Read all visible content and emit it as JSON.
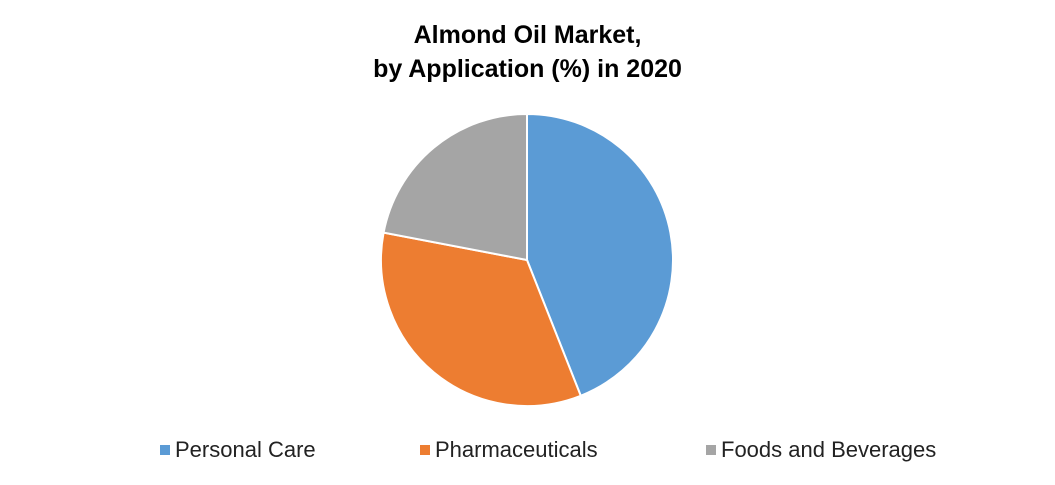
{
  "chart_data": {
    "type": "pie",
    "title": "Almond Oil Market,\nby Application (%) in 2020",
    "categories": [
      "Personal Care",
      "Pharmaceuticals",
      "Foods and Beverages"
    ],
    "values": [
      44,
      34,
      22
    ],
    "colors": [
      "#5b9bd5",
      "#ed7d31",
      "#a5a5a5"
    ],
    "legend": "bottom"
  }
}
